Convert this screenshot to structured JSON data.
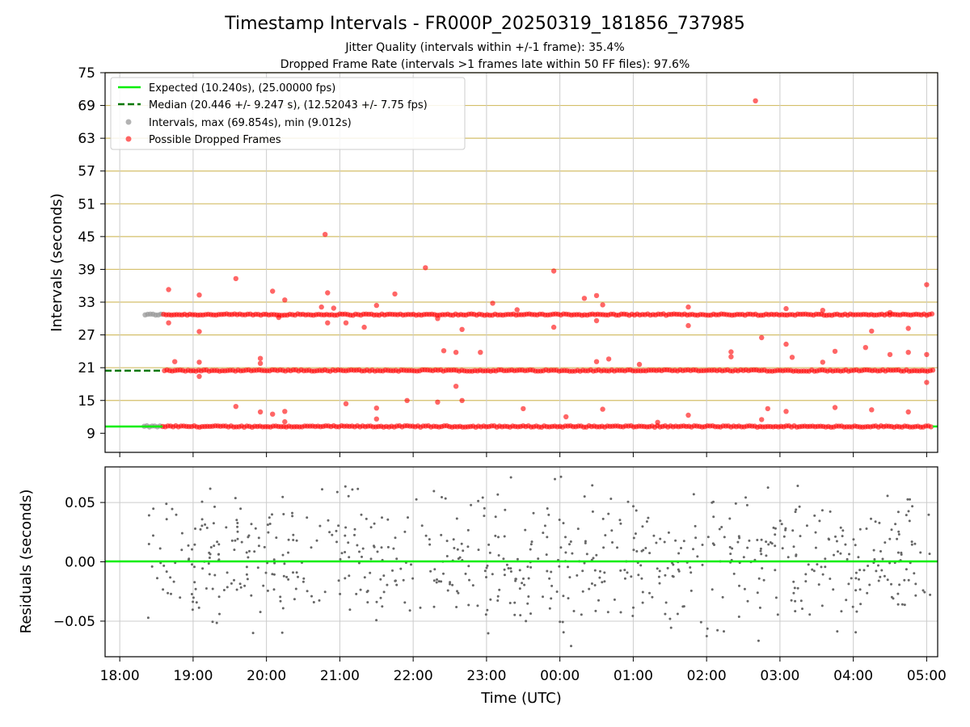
{
  "title": "Timestamp Intervals - FR000P_20250319_181856_737985",
  "subtitle_1": "Jitter Quality (intervals within +/-1 frame): 35.4%",
  "subtitle_2": "Dropped Frame Rate (intervals >1 frames late within 50 FF files): 97.6%",
  "colors": {
    "expected": "#00ee00",
    "median": "#007700",
    "intervals": "#999999",
    "dropped": "#ff0000",
    "residual": "#666666",
    "hgrid_top": "#d4bf6a",
    "grid": "#cccccc"
  },
  "chart_data": [
    {
      "type": "scatter",
      "ylabel": "Intervals (seconds)",
      "ylim": [
        5.5,
        75
      ],
      "yticks": [
        "9",
        "15",
        "21",
        "27",
        "33",
        "39",
        "45",
        "51",
        "57",
        "63",
        "69",
        "75"
      ],
      "grid": true,
      "legend_position": "top-left",
      "legend": [
        "Expected (10.240s), (25.00000 fps)",
        "Median (20.446 +/- 9.247 s), (12.52043 +/- 7.75 fps)",
        "Intervals, max (69.854s), min (9.012s)",
        "Possible Dropped Frames"
      ],
      "expected_interval": 10.24,
      "median_interval": 20.446,
      "bands": [
        10.24,
        20.48,
        30.72
      ],
      "x_range_hours": [
        "18:20",
        "05:05"
      ],
      "gray_points_until": "18:35",
      "outliers": [
        {
          "time": "18:40",
          "value": 35.3
        },
        {
          "time": "18:45",
          "value": 22.1
        },
        {
          "time": "18:40",
          "value": 29.2
        },
        {
          "time": "19:05",
          "value": 34.3
        },
        {
          "time": "19:05",
          "value": 27.6
        },
        {
          "time": "19:05",
          "value": 22.0
        },
        {
          "time": "19:05",
          "value": 19.4
        },
        {
          "time": "19:35",
          "value": 37.3
        },
        {
          "time": "19:35",
          "value": 13.9
        },
        {
          "time": "19:55",
          "value": 22.7
        },
        {
          "time": "19:55",
          "value": 21.8
        },
        {
          "time": "19:55",
          "value": 12.9
        },
        {
          "time": "20:05",
          "value": 35.0
        },
        {
          "time": "20:15",
          "value": 33.4
        },
        {
          "time": "20:10",
          "value": 30.2
        },
        {
          "time": "20:05",
          "value": 12.5
        },
        {
          "time": "20:15",
          "value": 13.0
        },
        {
          "time": "20:15",
          "value": 11.1
        },
        {
          "time": "20:45",
          "value": 32.1
        },
        {
          "time": "20:50",
          "value": 34.7
        },
        {
          "time": "20:50",
          "value": 29.2
        },
        {
          "time": "20:48",
          "value": 45.4
        },
        {
          "time": "20:55",
          "value": 31.9
        },
        {
          "time": "21:05",
          "value": 14.4
        },
        {
          "time": "21:05",
          "value": 29.2
        },
        {
          "time": "21:20",
          "value": 28.4
        },
        {
          "time": "21:30",
          "value": 32.4
        },
        {
          "time": "21:30",
          "value": 13.6
        },
        {
          "time": "21:30",
          "value": 11.6
        },
        {
          "time": "21:45",
          "value": 34.5
        },
        {
          "time": "21:55",
          "value": 15.0
        },
        {
          "time": "22:10",
          "value": 39.3
        },
        {
          "time": "22:20",
          "value": 30.0
        },
        {
          "time": "22:20",
          "value": 14.7
        },
        {
          "time": "22:25",
          "value": 24.1
        },
        {
          "time": "22:35",
          "value": 23.8
        },
        {
          "time": "22:35",
          "value": 17.6
        },
        {
          "time": "22:40",
          "value": 15.0
        },
        {
          "time": "22:40",
          "value": 28.0
        },
        {
          "time": "22:55",
          "value": 23.8
        },
        {
          "time": "23:05",
          "value": 32.8
        },
        {
          "time": "23:25",
          "value": 31.6
        },
        {
          "time": "23:30",
          "value": 13.5
        },
        {
          "time": "23:55",
          "value": 38.7
        },
        {
          "time": "23:55",
          "value": 28.4
        },
        {
          "time": "00:05",
          "value": 12.0
        },
        {
          "time": "00:20",
          "value": 33.7
        },
        {
          "time": "00:30",
          "value": 34.2
        },
        {
          "time": "00:30",
          "value": 29.6
        },
        {
          "time": "00:30",
          "value": 22.1
        },
        {
          "time": "00:35",
          "value": 32.5
        },
        {
          "time": "00:35",
          "value": 13.4
        },
        {
          "time": "00:40",
          "value": 22.6
        },
        {
          "time": "01:05",
          "value": 21.6
        },
        {
          "time": "01:20",
          "value": 11.0
        },
        {
          "time": "01:45",
          "value": 32.1
        },
        {
          "time": "01:45",
          "value": 28.7
        },
        {
          "time": "01:45",
          "value": 12.3
        },
        {
          "time": "02:20",
          "value": 23.9
        },
        {
          "time": "02:20",
          "value": 23.0
        },
        {
          "time": "02:45",
          "value": 26.5
        },
        {
          "time": "02:45",
          "value": 11.5
        },
        {
          "time": "02:50",
          "value": 13.5
        },
        {
          "time": "03:05",
          "value": 31.8
        },
        {
          "time": "03:05",
          "value": 25.3
        },
        {
          "time": "03:10",
          "value": 22.9
        },
        {
          "time": "03:05",
          "value": 13.0
        },
        {
          "time": "03:35",
          "value": 31.5
        },
        {
          "time": "03:35",
          "value": 22.0
        },
        {
          "time": "03:45",
          "value": 24.0
        },
        {
          "time": "03:45",
          "value": 13.7
        },
        {
          "time": "04:10",
          "value": 24.7
        },
        {
          "time": "04:15",
          "value": 27.7
        },
        {
          "time": "04:15",
          "value": 13.3
        },
        {
          "time": "04:30",
          "value": 23.4
        },
        {
          "time": "04:30",
          "value": 31.1
        },
        {
          "time": "04:45",
          "value": 23.8
        },
        {
          "time": "04:45",
          "value": 28.2
        },
        {
          "time": "04:45",
          "value": 12.9
        },
        {
          "time": "05:00",
          "value": 36.2
        },
        {
          "time": "05:00",
          "value": 23.4
        },
        {
          "time": "05:00",
          "value": 18.3
        },
        {
          "time": "02:40",
          "value": 69.854
        }
      ]
    },
    {
      "type": "scatter",
      "xlabel": "Time (UTC)",
      "ylabel": "Residuals (seconds)",
      "ylim": [
        -0.08,
        0.08
      ],
      "yticks": [
        "−0.05",
        "0.00",
        "0.05"
      ],
      "xticks": [
        "18:00",
        "19:00",
        "20:00",
        "21:00",
        "22:00",
        "23:00",
        "00:00",
        "01:00",
        "02:00",
        "03:00",
        "04:00",
        "05:00"
      ],
      "grid": true,
      "zero_line": 0.0,
      "residual_range": [
        -0.08,
        0.08
      ]
    }
  ]
}
